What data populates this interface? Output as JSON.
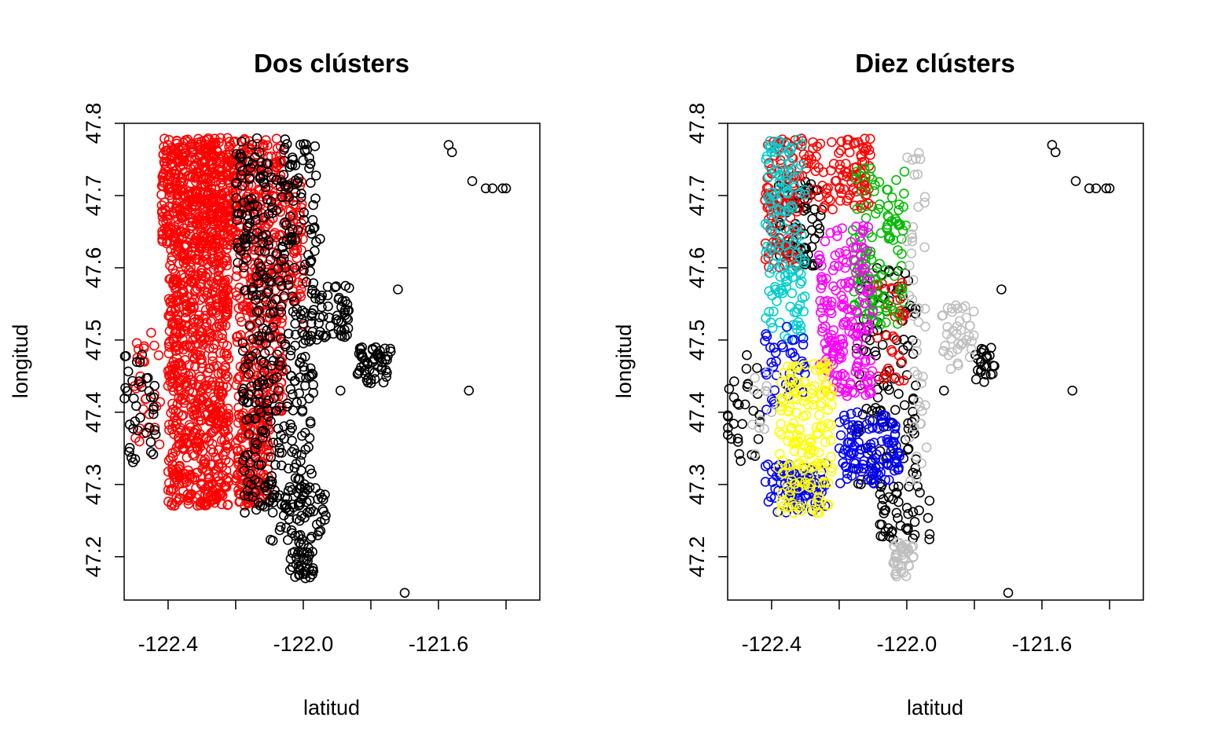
{
  "chart_data": [
    {
      "type": "scatter",
      "title": "Dos clústers",
      "xlabel": "latitud",
      "ylabel": "longitud",
      "xlim": [
        -122.53,
        -121.3
      ],
      "ylim": [
        47.14,
        47.8
      ],
      "x_ticks": [
        "-122.4",
        "-122.0",
        "-121.6"
      ],
      "x_tick_values": [
        -122.4,
        -122.2,
        -122.0,
        -121.8,
        -121.6,
        -121.4
      ],
      "y_ticks": [
        "47.2",
        "47.3",
        "47.4",
        "47.5",
        "47.6",
        "47.7",
        "47.8"
      ],
      "y_tick_values": [
        47.2,
        47.3,
        47.4,
        47.5,
        47.6,
        47.7,
        47.8
      ],
      "marker": "open-circle",
      "grid": false,
      "legend": "none",
      "series": [
        {
          "color": "#FF0000",
          "regions": [
            {
              "x": [
                -122.42,
                -122.2
              ],
              "y": [
                47.63,
                47.78
              ],
              "n": 520
            },
            {
              "x": [
                -122.4,
                -122.22
              ],
              "y": [
                47.27,
                47.63
              ],
              "n": 700
            },
            {
              "x": [
                -122.2,
                -122.06
              ],
              "y": [
                47.4,
                47.78
              ],
              "n": 380
            },
            {
              "x": [
                -122.2,
                -122.1
              ],
              "y": [
                47.27,
                47.4
              ],
              "n": 160
            },
            {
              "x": [
                -122.06,
                -122.0
              ],
              "y": [
                47.55,
                47.72
              ],
              "n": 70
            },
            {
              "x": [
                -122.5,
                -122.42
              ],
              "y": [
                47.35,
                47.5
              ],
              "n": 28
            }
          ],
          "points": [
            {
              "x": -122.45,
              "y": 47.51
            },
            {
              "x": -122.47,
              "y": 47.47
            },
            {
              "x": -122.12,
              "y": 47.28
            },
            {
              "x": -122.0,
              "y": 47.52
            }
          ]
        },
        {
          "color": "#000000",
          "regions": [
            {
              "x": [
                -122.2,
                -121.96
              ],
              "y": [
                47.6,
                47.78
              ],
              "n": 170
            },
            {
              "x": [
                -122.18,
                -121.97
              ],
              "y": [
                47.26,
                47.6
              ],
              "n": 260
            },
            {
              "x": [
                -121.98,
                -121.86
              ],
              "y": [
                47.5,
                47.58
              ],
              "n": 60
            },
            {
              "x": [
                -121.84,
                -121.74
              ],
              "y": [
                47.44,
                47.49
              ],
              "n": 55
            },
            {
              "x": [
                -122.1,
                -121.93
              ],
              "y": [
                47.22,
                47.3
              ],
              "n": 60
            },
            {
              "x": [
                -122.04,
                -121.97
              ],
              "y": [
                47.17,
                47.22
              ],
              "n": 40
            },
            {
              "x": [
                -122.53,
                -122.43
              ],
              "y": [
                47.33,
                47.48
              ],
              "n": 40
            }
          ],
          "points": [
            {
              "x": -121.57,
              "y": 47.77
            },
            {
              "x": -121.56,
              "y": 47.76
            },
            {
              "x": -121.5,
              "y": 47.72
            },
            {
              "x": -121.46,
              "y": 47.71
            },
            {
              "x": -121.44,
              "y": 47.71
            },
            {
              "x": -121.41,
              "y": 47.71
            },
            {
              "x": -121.4,
              "y": 47.71
            },
            {
              "x": -121.51,
              "y": 47.43
            },
            {
              "x": -121.72,
              "y": 47.57
            },
            {
              "x": -121.7,
              "y": 47.15
            },
            {
              "x": -121.89,
              "y": 47.43
            },
            {
              "x": -121.95,
              "y": 47.64
            },
            {
              "x": -121.97,
              "y": 47.18
            }
          ]
        }
      ]
    },
    {
      "type": "scatter",
      "title": "Diez clústers",
      "xlabel": "latitud",
      "ylabel": "longitud",
      "xlim": [
        -122.53,
        -121.3
      ],
      "ylim": [
        47.14,
        47.8
      ],
      "x_ticks": [
        "-122.4",
        "-122.0",
        "-121.6"
      ],
      "x_tick_values": [
        -122.4,
        -122.2,
        -122.0,
        -121.8,
        -121.6,
        -121.4
      ],
      "y_ticks": [
        "47.2",
        "47.3",
        "47.4",
        "47.5",
        "47.6",
        "47.7",
        "47.8"
      ],
      "y_tick_values": [
        47.2,
        47.3,
        47.4,
        47.5,
        47.6,
        47.7,
        47.8
      ],
      "marker": "open-circle",
      "grid": false,
      "legend": "none",
      "series": [
        {
          "color": "#000000",
          "regions": [
            {
              "x": [
                -122.38,
                -122.25
              ],
              "y": [
                47.6,
                47.72
              ],
              "n": 80
            },
            {
              "x": [
                -122.15,
                -121.97
              ],
              "y": [
                47.3,
                47.6
              ],
              "n": 120
            },
            {
              "x": [
                -122.08,
                -121.93
              ],
              "y": [
                47.22,
                47.3
              ],
              "n": 45
            },
            {
              "x": [
                -121.8,
                -121.74
              ],
              "y": [
                47.44,
                47.49
              ],
              "n": 25
            },
            {
              "x": [
                -122.53,
                -122.43
              ],
              "y": [
                47.33,
                47.48
              ],
              "n": 30
            }
          ],
          "points": [
            {
              "x": -121.57,
              "y": 47.77
            },
            {
              "x": -121.56,
              "y": 47.76
            },
            {
              "x": -121.5,
              "y": 47.72
            },
            {
              "x": -121.46,
              "y": 47.71
            },
            {
              "x": -121.44,
              "y": 47.71
            },
            {
              "x": -121.41,
              "y": 47.71
            },
            {
              "x": -121.4,
              "y": 47.71
            },
            {
              "x": -121.51,
              "y": 47.43
            },
            {
              "x": -121.72,
              "y": 47.57
            },
            {
              "x": -121.7,
              "y": 47.15
            },
            {
              "x": -121.89,
              "y": 47.43
            }
          ]
        },
        {
          "color": "#FF0000",
          "regions": [
            {
              "x": [
                -122.42,
                -122.1
              ],
              "y": [
                47.68,
                47.78
              ],
              "n": 160
            },
            {
              "x": [
                -122.42,
                -122.32
              ],
              "y": [
                47.6,
                47.7
              ],
              "n": 60
            },
            {
              "x": [
                -122.1,
                -122.0
              ],
              "y": [
                47.44,
                47.58
              ],
              "n": 35
            }
          ],
          "points": []
        },
        {
          "color": "#00CDCD",
          "regions": [
            {
              "x": [
                -122.42,
                -122.3
              ],
              "y": [
                47.5,
                47.78
              ],
              "n": 140
            }
          ],
          "points": []
        },
        {
          "color": "#00BB00",
          "regions": [
            {
              "x": [
                -122.16,
                -122.0
              ],
              "y": [
                47.52,
                47.74
              ],
              "n": 120
            }
          ],
          "points": []
        },
        {
          "color": "#FF00FF",
          "regions": [
            {
              "x": [
                -122.26,
                -122.1
              ],
              "y": [
                47.42,
                47.66
              ],
              "n": 180
            }
          ],
          "points": []
        },
        {
          "color": "#0000FF",
          "regions": [
            {
              "x": [
                -122.2,
                -122.02
              ],
              "y": [
                47.3,
                47.4
              ],
              "n": 110
            },
            {
              "x": [
                -122.42,
                -122.24
              ],
              "y": [
                47.26,
                47.33
              ],
              "n": 90
            },
            {
              "x": [
                -122.42,
                -122.3
              ],
              "y": [
                47.4,
                47.52
              ],
              "n": 40
            }
          ],
          "points": []
        },
        {
          "color": "#FFFF00",
          "regions": [
            {
              "x": [
                -122.38,
                -122.22
              ],
              "y": [
                47.26,
                47.47
              ],
              "n": 170
            }
          ],
          "points": []
        },
        {
          "color": "#BEBEBE",
          "regions": [
            {
              "x": [
                -122.04,
                -121.98
              ],
              "y": [
                47.17,
                47.22
              ],
              "n": 40
            },
            {
              "x": [
                -121.9,
                -121.8
              ],
              "y": [
                47.45,
                47.55
              ],
              "n": 40
            },
            {
              "x": [
                -122.0,
                -121.94
              ],
              "y": [
                47.3,
                47.76
              ],
              "n": 45
            },
            {
              "x": [
                -122.46,
                -122.4
              ],
              "y": [
                47.33,
                47.46
              ],
              "n": 12
            }
          ],
          "points": []
        }
      ]
    }
  ]
}
